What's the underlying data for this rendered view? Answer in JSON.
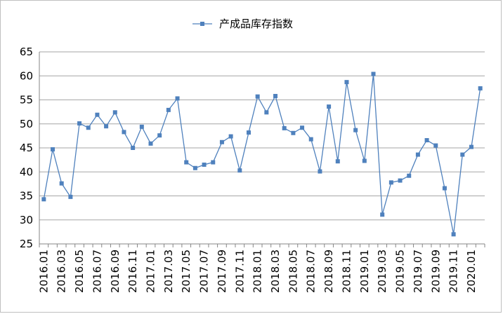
{
  "chart_data": {
    "type": "line",
    "title": "",
    "xlabel": "",
    "ylabel": "",
    "ylim": [
      25,
      65
    ],
    "yticks": [
      25,
      30,
      35,
      40,
      45,
      50,
      55,
      60,
      65
    ],
    "grid": "horizontal",
    "legend_position": "top",
    "series_color": "#4f81bd",
    "x": [
      "2016.01",
      "2016.02",
      "2016.03",
      "2016.04",
      "2016.05",
      "2016.06",
      "2016.07",
      "2016.08",
      "2016.09",
      "2016.10",
      "2016.11",
      "2016.12",
      "2017.01",
      "2017.02",
      "2017.03",
      "2017.04",
      "2017.05",
      "2017.06",
      "2017.07",
      "2017.08",
      "2017.09",
      "2017.10",
      "2017.11",
      "2017.12",
      "2018.01",
      "2018.02",
      "2018.03",
      "2018.04",
      "2018.05",
      "2018.06",
      "2018.07",
      "2018.08",
      "2018.09",
      "2018.10",
      "2018.11",
      "2018.12",
      "2019.01",
      "2019.02",
      "2019.03",
      "2019.04",
      "2019.05",
      "2019.06",
      "2019.07",
      "2019.08",
      "2019.09",
      "2019.10",
      "2019.11",
      "2019.12",
      "2020.01",
      "2020.02"
    ],
    "x_tick_labels": [
      "2016.01",
      "2016.03",
      "2016.05",
      "2016.07",
      "2016.09",
      "2016.11",
      "2017.01",
      "2017.03",
      "2017.05",
      "2017.07",
      "2017.09",
      "2017.11",
      "2018.01",
      "2018.03",
      "2018.05",
      "2018.07",
      "2018.09",
      "2018.11",
      "2019.01",
      "2019.03",
      "2019.05",
      "2019.07",
      "2019.09",
      "2019.11",
      "2020.01"
    ],
    "series": [
      {
        "name": "产成品库存指数",
        "values": [
          34.3,
          44.7,
          37.6,
          34.8,
          50.1,
          49.2,
          51.9,
          49.5,
          52.4,
          48.3,
          45.0,
          49.4,
          45.9,
          47.6,
          52.9,
          55.3,
          42.0,
          40.8,
          41.5,
          42.0,
          46.2,
          47.4,
          40.3,
          48.2,
          55.7,
          52.4,
          55.8,
          49.1,
          48.1,
          49.2,
          46.8,
          40.1,
          53.6,
          42.2,
          58.7,
          48.7,
          42.3,
          60.4,
          31.1,
          37.8,
          38.2,
          39.2,
          43.6,
          46.6,
          45.5,
          36.6,
          27.0,
          43.6,
          45.2,
          57.4
        ]
      }
    ]
  }
}
